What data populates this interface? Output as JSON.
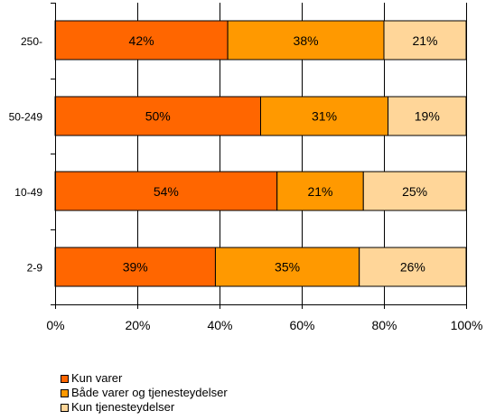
{
  "chart_data": {
    "type": "bar",
    "orientation": "horizontal",
    "stacked": true,
    "categories": [
      "250-",
      "50-249",
      "10-49",
      "2-9"
    ],
    "series": [
      {
        "name": "Kun varer",
        "values": [
          42,
          50,
          54,
          39
        ],
        "labels": [
          "42%",
          "50%",
          "54%",
          "39%"
        ],
        "color": "#FF6600"
      },
      {
        "name": "Både varer og tjenesteydelser",
        "values": [
          38,
          31,
          21,
          35
        ],
        "labels": [
          "38%",
          "31%",
          "21%",
          "35%"
        ],
        "color": "#FF9900"
      },
      {
        "name": "Kun tjenesteydelser",
        "values": [
          21,
          19,
          25,
          26
        ],
        "labels": [
          "21%",
          "19%",
          "25%",
          "26%"
        ],
        "color": "#FFD699"
      }
    ],
    "xlim": [
      0,
      100
    ],
    "xticks": [
      0,
      20,
      40,
      60,
      80,
      100
    ],
    "xtick_labels": [
      "0%",
      "20%",
      "40%",
      "60%",
      "80%",
      "100%"
    ],
    "grid": true,
    "legend_position": "bottom-left"
  }
}
